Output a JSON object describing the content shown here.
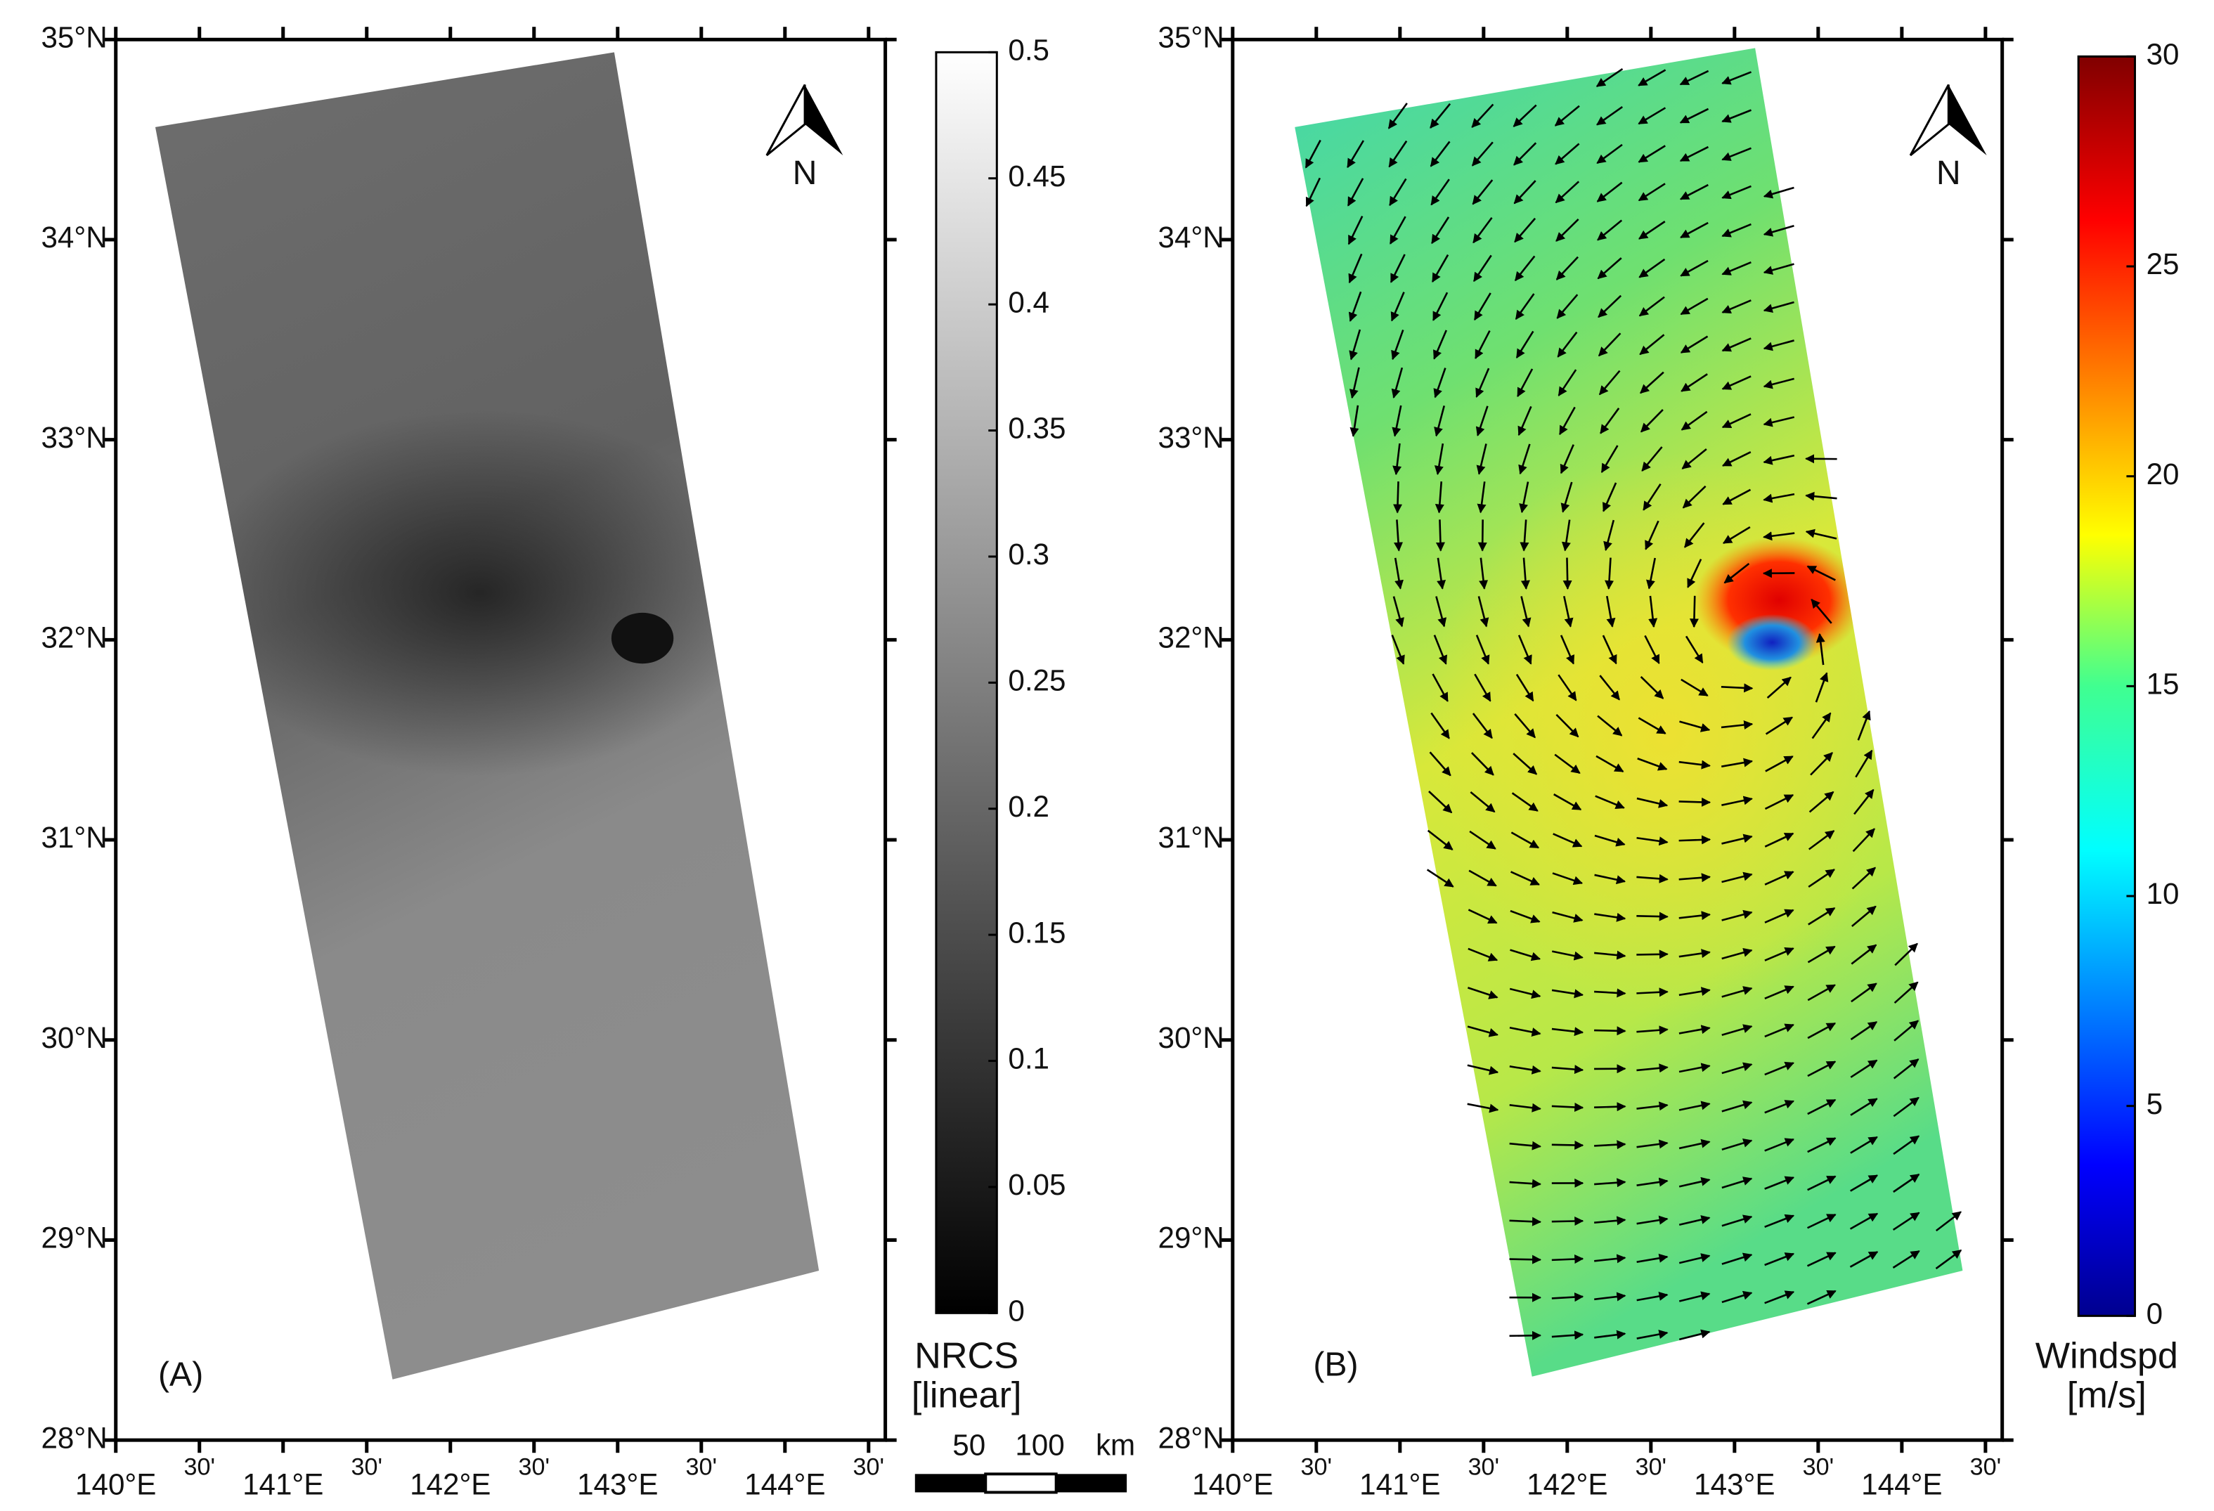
{
  "panels": [
    {
      "label": "(A)",
      "north": "N",
      "xlim": [
        140,
        144.6
      ],
      "ylim": [
        28,
        35
      ],
      "lat_ticks": [
        {
          "value": 28,
          "label": "28°N"
        },
        {
          "value": 29,
          "label": "29°N"
        },
        {
          "value": 30,
          "label": "30°N"
        },
        {
          "value": 31,
          "label": "31°N"
        },
        {
          "value": 32,
          "label": "32°N"
        },
        {
          "value": 33,
          "label": "33°N"
        },
        {
          "value": 34,
          "label": "34°N"
        },
        {
          "value": 35,
          "label": "35°N"
        }
      ],
      "lon_ticks": [
        {
          "value": 140,
          "label": "140°E"
        },
        {
          "value": 140.5,
          "label": "30'"
        },
        {
          "value": 141,
          "label": "141°E"
        },
        {
          "value": 141.5,
          "label": "30'"
        },
        {
          "value": 142,
          "label": "142°E"
        },
        {
          "value": 142.5,
          "label": "30'"
        },
        {
          "value": 143,
          "label": "143°E"
        },
        {
          "value": 143.5,
          "label": "30'"
        },
        {
          "value": 144,
          "label": "144°E"
        },
        {
          "value": 144.5,
          "label": "30'"
        }
      ],
      "colorbar": {
        "title": [
          "NRCS",
          "[linear]"
        ],
        "lim": [
          0,
          0.5
        ],
        "ticks": [
          0,
          0.05,
          0.1,
          0.15,
          0.2,
          0.25,
          0.3,
          0.35,
          0.4,
          0.45,
          0.5
        ]
      }
    },
    {
      "label": "(B)",
      "north": "N",
      "xlim": [
        140,
        144.6
      ],
      "ylim": [
        28,
        35
      ],
      "lat_ticks": [
        {
          "value": 28,
          "label": "28°N"
        },
        {
          "value": 29,
          "label": "29°N"
        },
        {
          "value": 30,
          "label": "30°N"
        },
        {
          "value": 31,
          "label": "31°N"
        },
        {
          "value": 32,
          "label": "32°N"
        },
        {
          "value": 33,
          "label": "33°N"
        },
        {
          "value": 34,
          "label": "34°N"
        },
        {
          "value": 35,
          "label": "35°N"
        }
      ],
      "lon_ticks": [
        {
          "value": 140,
          "label": "140°E"
        },
        {
          "value": 140.5,
          "label": "30'"
        },
        {
          "value": 141,
          "label": "141°E"
        },
        {
          "value": 141.5,
          "label": "30'"
        },
        {
          "value": 142,
          "label": "142°E"
        },
        {
          "value": 142.5,
          "label": "30'"
        },
        {
          "value": 143,
          "label": "143°E"
        },
        {
          "value": 143.5,
          "label": "30'"
        },
        {
          "value": 144,
          "label": "144°E"
        },
        {
          "value": 144.5,
          "label": "30'"
        }
      ],
      "colorbar": {
        "title": [
          "Windspd",
          "[m/s]"
        ],
        "lim": [
          0,
          30
        ],
        "ticks": [
          0,
          5,
          10,
          15,
          20,
          25,
          30
        ]
      }
    }
  ],
  "scale_bar": {
    "labels": [
      "50",
      "100",
      "km"
    ]
  }
}
